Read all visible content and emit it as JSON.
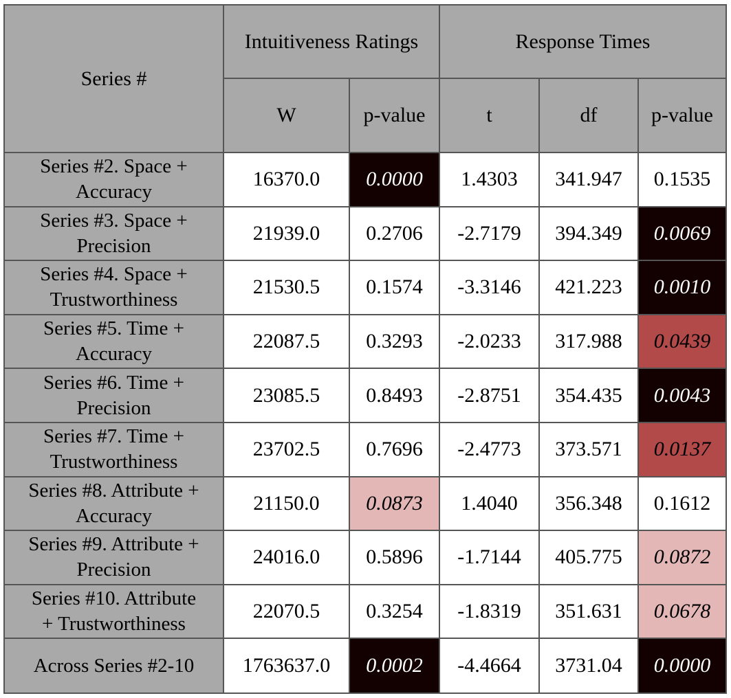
{
  "header": {
    "series_label": "Series #",
    "group_intuitiveness": "Intuitiveness Ratings",
    "group_response": "Response Times",
    "col_w": "W",
    "col_pvalue_1": "p-value",
    "col_t": "t",
    "col_df": "df",
    "col_pvalue_2": "p-value"
  },
  "colors": {
    "header_bg": "#a9a9a9",
    "sig_strong": "#130000",
    "sig_mid": "#b34a4a",
    "sig_weak": "#e4b7b7"
  },
  "rows": [
    {
      "label_line1": "Series #2. Space +",
      "label_line2": "Accuracy",
      "w": "16370.0",
      "p1": "0.0000",
      "p1_sig": "strong",
      "t": "1.4303",
      "df": "341.947",
      "p2": "0.1535",
      "p2_sig": "none"
    },
    {
      "label_line1": "Series #3. Space +",
      "label_line2": "Precision",
      "w": "21939.0",
      "p1": "0.2706",
      "p1_sig": "none",
      "t": "-2.7179",
      "df": "394.349",
      "p2": "0.0069",
      "p2_sig": "strong"
    },
    {
      "label_line1": "Series #4. Space +",
      "label_line2": "Trustworthiness",
      "w": "21530.5",
      "p1": "0.1574",
      "p1_sig": "none",
      "t": "-3.3146",
      "df": "421.223",
      "p2": "0.0010",
      "p2_sig": "strong"
    },
    {
      "label_line1": "Series #5. Time +",
      "label_line2": "Accuracy",
      "w": "22087.5",
      "p1": "0.3293",
      "p1_sig": "none",
      "t": "-2.0233",
      "df": "317.988",
      "p2": "0.0439",
      "p2_sig": "mid"
    },
    {
      "label_line1": "Series #6. Time +",
      "label_line2": "Precision",
      "w": "23085.5",
      "p1": "0.8493",
      "p1_sig": "none",
      "t": "-2.8751",
      "df": "354.435",
      "p2": "0.0043",
      "p2_sig": "strong"
    },
    {
      "label_line1": "Series #7. Time +",
      "label_line2": "Trustworthiness",
      "w": "23702.5",
      "p1": "0.7696",
      "p1_sig": "none",
      "t": "-2.4773",
      "df": "373.571",
      "p2": "0.0137",
      "p2_sig": "mid"
    },
    {
      "label_line1": "Series #8. Attribute +",
      "label_line2": "Accuracy",
      "w": "21150.0",
      "p1": "0.0873",
      "p1_sig": "weak",
      "t": "1.4040",
      "df": "356.348",
      "p2": "0.1612",
      "p2_sig": "none"
    },
    {
      "label_line1": "Series #9. Attribute +",
      "label_line2": "Precision",
      "w": "24016.0",
      "p1": "0.5896",
      "p1_sig": "none",
      "t": "-1.7144",
      "df": "405.775",
      "p2": "0.0872",
      "p2_sig": "weak"
    },
    {
      "label_line1": "Series #10. Attribute",
      "label_line2": "+ Trustworthiness",
      "w": "22070.5",
      "p1": "0.3254",
      "p1_sig": "none",
      "t": "-1.8319",
      "df": "351.631",
      "p2": "0.0678",
      "p2_sig": "weak"
    },
    {
      "label_line1": "Across Series #2-10",
      "label_line2": "",
      "w": "1763637.0",
      "p1": "0.0002",
      "p1_sig": "strong",
      "t": "-4.4664",
      "df": "3731.04",
      "p2": "0.0000",
      "p2_sig": "strong"
    }
  ]
}
